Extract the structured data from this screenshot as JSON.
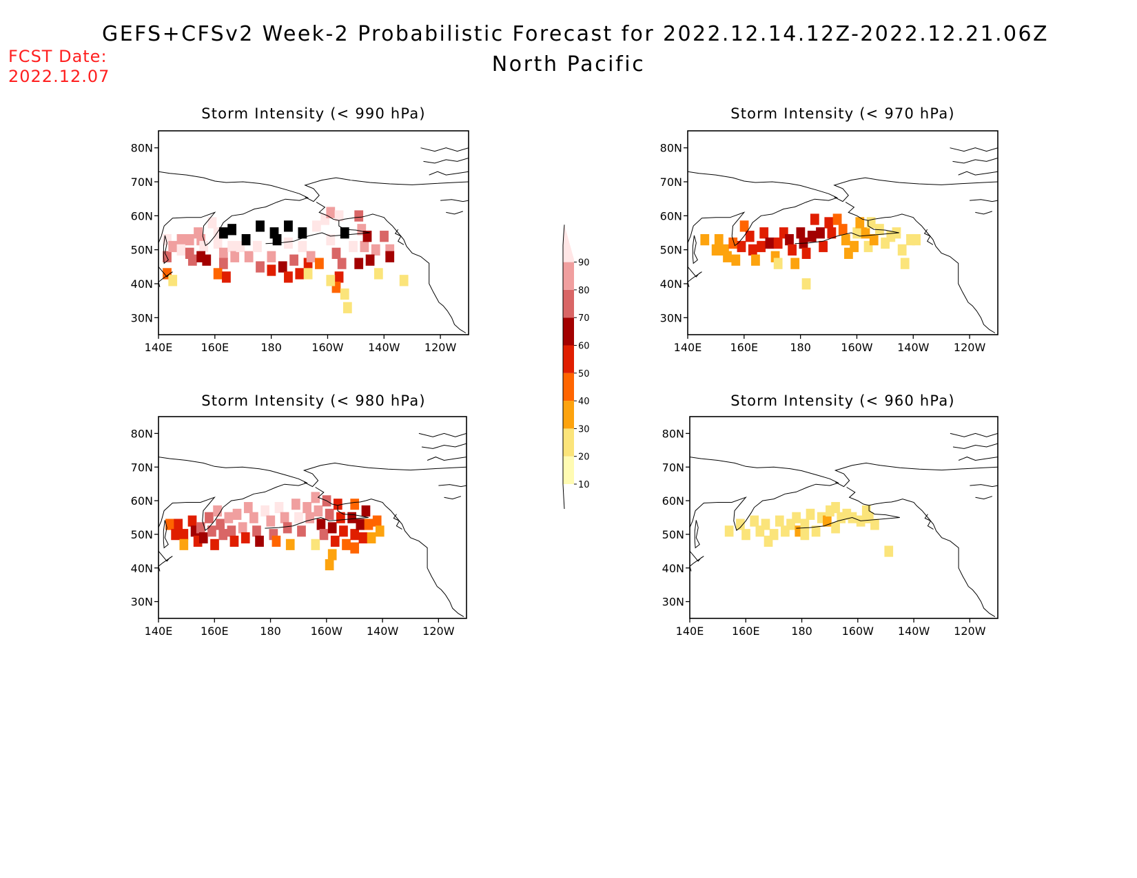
{
  "title": {
    "line1": "GEFS+CFSv2 Week-2 Probabilistic Forecast for 2022.12.14.12Z-2022.12.21.06Z",
    "line2": "North Pacific"
  },
  "fcst_date": {
    "label": "FCST Date:",
    "value": "2022.12.07"
  },
  "lat_ticks": [
    "80N",
    "70N",
    "60N",
    "50N",
    "40N",
    "30N"
  ],
  "lon_ticks": [
    "140E",
    "160E",
    "180",
    "160W",
    "140W",
    "120W"
  ],
  "colorbar": {
    "levels": [
      "10",
      "20",
      "30",
      "40",
      "50",
      "60",
      "70",
      "80",
      "90"
    ],
    "colors": [
      "#fffbb2",
      "#fbe47a",
      "#fda30e",
      "#ff6500",
      "#e01e00",
      "#a30000",
      "#d96666",
      "#f09f9f",
      "#ffe6e6"
    ]
  },
  "chart_data": [
    {
      "type": "heatmap",
      "title": "Storm Intensity (< 990 hPa)",
      "x_unit": "longitude (degrees east, 0-360)",
      "y_unit": "latitude (degrees north)",
      "xlim": [
        140,
        250
      ],
      "ylim": [
        25,
        85
      ],
      "cells": [
        [
          143,
          53,
          8
        ],
        [
          143,
          48,
          6
        ],
        [
          145,
          51,
          7
        ],
        [
          143,
          43,
          3
        ],
        [
          145,
          41,
          1
        ],
        [
          148,
          53,
          7
        ],
        [
          148,
          50,
          8
        ],
        [
          151,
          53,
          7
        ],
        [
          151,
          49,
          6
        ],
        [
          155,
          53,
          7
        ],
        [
          156,
          51,
          8
        ],
        [
          152,
          47,
          6
        ],
        [
          155,
          48,
          5
        ],
        [
          157,
          47,
          5
        ],
        [
          154,
          55,
          7
        ],
        [
          159,
          58,
          8
        ],
        [
          161,
          55,
          8
        ],
        [
          161,
          52,
          8
        ],
        [
          163,
          49,
          7
        ],
        [
          163,
          55,
          9
        ],
        [
          166,
          56,
          9
        ],
        [
          166,
          51,
          8
        ],
        [
          167,
          48,
          7
        ],
        [
          163,
          46,
          6
        ],
        [
          161,
          43,
          3
        ],
        [
          164,
          42,
          4
        ],
        [
          169,
          51,
          8
        ],
        [
          172,
          48,
          7
        ],
        [
          171,
          53,
          9
        ],
        [
          176,
          57,
          9
        ],
        [
          181,
          55,
          9
        ],
        [
          186,
          57,
          9
        ],
        [
          191,
          55,
          9
        ],
        [
          186,
          52,
          8
        ],
        [
          180,
          48,
          7
        ],
        [
          182,
          53,
          9
        ],
        [
          175,
          51,
          8
        ],
        [
          176,
          45,
          6
        ],
        [
          180,
          44,
          4
        ],
        [
          184,
          45,
          5
        ],
        [
          186,
          42,
          4
        ],
        [
          190,
          43,
          4
        ],
        [
          188,
          47,
          6
        ],
        [
          193,
          46,
          4
        ],
        [
          191,
          51,
          8
        ],
        [
          194,
          48,
          7
        ],
        [
          193,
          43,
          1
        ],
        [
          196,
          57,
          8
        ],
        [
          199,
          59,
          8
        ],
        [
          201,
          61,
          7
        ],
        [
          204,
          60,
          8
        ],
        [
          206,
          55,
          9
        ],
        [
          209,
          51,
          8
        ],
        [
          201,
          53,
          8
        ],
        [
          203,
          49,
          6
        ],
        [
          205,
          46,
          6
        ],
        [
          204,
          42,
          4
        ],
        [
          203,
          39,
          3
        ],
        [
          206,
          37,
          1
        ],
        [
          207,
          33,
          1
        ],
        [
          201,
          41,
          1
        ],
        [
          212,
          56,
          7
        ],
        [
          213,
          51,
          7
        ],
        [
          211,
          46,
          5
        ],
        [
          214,
          54,
          5
        ],
        [
          217,
          50,
          7
        ],
        [
          215,
          47,
          5
        ],
        [
          211,
          60,
          6
        ],
        [
          218,
          43,
          1
        ],
        [
          220,
          54,
          6
        ],
        [
          222,
          50,
          7
        ],
        [
          222,
          48,
          5
        ],
        [
          227,
          41,
          1
        ],
        [
          197,
          46,
          3
        ]
      ]
    },
    {
      "type": "heatmap",
      "title": "Storm Intensity (< 970 hPa)",
      "x_unit": "longitude (degrees east, 0-360)",
      "y_unit": "latitude (degrees north)",
      "xlim": [
        140,
        250
      ],
      "ylim": [
        25,
        85
      ],
      "cells": [
        [
          146,
          53,
          2
        ],
        [
          151,
          53,
          2
        ],
        [
          150,
          50,
          2
        ],
        [
          153,
          50,
          2
        ],
        [
          154,
          48,
          2
        ],
        [
          156,
          52,
          3
        ],
        [
          157,
          47,
          2
        ],
        [
          159,
          51,
          4
        ],
        [
          160,
          57,
          3
        ],
        [
          162,
          54,
          4
        ],
        [
          163,
          50,
          4
        ],
        [
          164,
          47,
          2
        ],
        [
          166,
          51,
          4
        ],
        [
          167,
          55,
          4
        ],
        [
          169,
          52,
          5
        ],
        [
          171,
          48,
          2
        ],
        [
          172,
          52,
          4
        ],
        [
          174,
          55,
          4
        ],
        [
          176,
          53,
          5
        ],
        [
          177,
          50,
          4
        ],
        [
          178,
          46,
          2
        ],
        [
          180,
          55,
          5
        ],
        [
          181,
          52,
          5
        ],
        [
          182,
          49,
          4
        ],
        [
          184,
          54,
          5
        ],
        [
          185,
          59,
          4
        ],
        [
          187,
          55,
          5
        ],
        [
          188,
          51,
          4
        ],
        [
          190,
          58,
          4
        ],
        [
          191,
          55,
          4
        ],
        [
          193,
          59,
          3
        ],
        [
          195,
          56,
          3
        ],
        [
          196,
          53,
          2
        ],
        [
          197,
          49,
          2
        ],
        [
          199,
          51,
          2
        ],
        [
          200,
          55,
          1
        ],
        [
          201,
          58,
          2
        ],
        [
          203,
          55,
          2
        ],
        [
          204,
          51,
          1
        ],
        [
          205,
          58,
          1
        ],
        [
          206,
          53,
          2
        ],
        [
          208,
          56,
          1
        ],
        [
          210,
          52,
          1
        ],
        [
          212,
          54,
          1
        ],
        [
          214,
          55,
          1
        ],
        [
          216,
          50,
          1
        ],
        [
          217,
          46,
          1
        ],
        [
          219,
          53,
          1
        ],
        [
          221,
          53,
          1
        ],
        [
          182,
          40,
          1
        ],
        [
          172,
          46,
          1
        ]
      ]
    },
    {
      "type": "heatmap",
      "title": "Storm Intensity (< 980 hPa)",
      "x_unit": "longitude (degrees east, 0-360)",
      "y_unit": "latitude (degrees north)",
      "xlim": [
        140,
        250
      ],
      "ylim": [
        25,
        85
      ],
      "cells": [
        [
          144,
          53,
          3
        ],
        [
          147,
          53,
          4
        ],
        [
          146,
          50,
          4
        ],
        [
          149,
          50,
          4
        ],
        [
          149,
          47,
          2
        ],
        [
          152,
          54,
          4
        ],
        [
          153,
          51,
          5
        ],
        [
          154,
          48,
          4
        ],
        [
          155,
          52,
          6
        ],
        [
          156,
          49,
          5
        ],
        [
          158,
          55,
          6
        ],
        [
          159,
          51,
          6
        ],
        [
          160,
          47,
          4
        ],
        [
          161,
          57,
          7
        ],
        [
          162,
          53,
          6
        ],
        [
          163,
          50,
          6
        ],
        [
          165,
          55,
          7
        ],
        [
          166,
          51,
          6
        ],
        [
          167,
          48,
          4
        ],
        [
          168,
          56,
          7
        ],
        [
          170,
          52,
          7
        ],
        [
          171,
          49,
          4
        ],
        [
          172,
          58,
          7
        ],
        [
          174,
          55,
          7
        ],
        [
          175,
          51,
          6
        ],
        [
          176,
          48,
          5
        ],
        [
          178,
          57,
          8
        ],
        [
          180,
          54,
          7
        ],
        [
          181,
          50,
          6
        ],
        [
          182,
          48,
          3
        ],
        [
          183,
          58,
          8
        ],
        [
          185,
          55,
          7
        ],
        [
          186,
          52,
          6
        ],
        [
          187,
          47,
          2
        ],
        [
          189,
          59,
          7
        ],
        [
          190,
          55,
          8
        ],
        [
          191,
          51,
          6
        ],
        [
          193,
          58,
          7
        ],
        [
          194,
          55,
          7
        ],
        [
          196,
          61,
          7
        ],
        [
          197,
          57,
          7
        ],
        [
          198,
          53,
          5
        ],
        [
          199,
          50,
          6
        ],
        [
          200,
          60,
          6
        ],
        [
          201,
          56,
          6
        ],
        [
          202,
          52,
          5
        ],
        [
          203,
          48,
          4
        ],
        [
          202,
          44,
          2
        ],
        [
          201,
          41,
          2
        ],
        [
          204,
          59,
          4
        ],
        [
          205,
          55,
          4
        ],
        [
          206,
          51,
          4
        ],
        [
          207,
          47,
          3
        ],
        [
          209,
          55,
          5
        ],
        [
          210,
          50,
          4
        ],
        [
          210,
          46,
          3
        ],
        [
          212,
          53,
          5
        ],
        [
          213,
          49,
          4
        ],
        [
          214,
          57,
          5
        ],
        [
          215,
          53,
          3
        ],
        [
          216,
          49,
          2
        ],
        [
          218,
          54,
          3
        ],
        [
          219,
          51,
          2
        ],
        [
          210,
          59,
          3
        ],
        [
          196,
          47,
          1
        ]
      ]
    },
    {
      "type": "heatmap",
      "title": "Storm Intensity (< 960 hPa)",
      "x_unit": "longitude (degrees east, 0-360)",
      "y_unit": "latitude (degrees north)",
      "xlim": [
        140,
        250
      ],
      "ylim": [
        25,
        85
      ],
      "cells": [
        [
          154,
          51,
          1
        ],
        [
          158,
          53,
          1
        ],
        [
          160,
          50,
          1
        ],
        [
          163,
          54,
          1
        ],
        [
          165,
          51,
          1
        ],
        [
          167,
          53,
          1
        ],
        [
          170,
          50,
          1
        ],
        [
          172,
          54,
          1
        ],
        [
          174,
          51,
          1
        ],
        [
          176,
          53,
          1
        ],
        [
          178,
          55,
          1
        ],
        [
          179,
          51,
          2
        ],
        [
          181,
          53,
          1
        ],
        [
          183,
          56,
          1
        ],
        [
          185,
          51,
          1
        ],
        [
          187,
          55,
          1
        ],
        [
          189,
          54,
          2
        ],
        [
          190,
          57,
          1
        ],
        [
          192,
          58,
          1
        ],
        [
          194,
          55,
          1
        ],
        [
          192,
          52,
          1
        ],
        [
          196,
          56,
          1
        ],
        [
          198,
          55,
          1
        ],
        [
          201,
          54,
          1
        ],
        [
          203,
          57,
          1
        ],
        [
          204,
          55,
          1
        ],
        [
          206,
          53,
          1
        ],
        [
          181,
          50,
          1
        ],
        [
          168,
          48,
          1
        ],
        [
          211,
          45,
          1
        ]
      ]
    }
  ]
}
